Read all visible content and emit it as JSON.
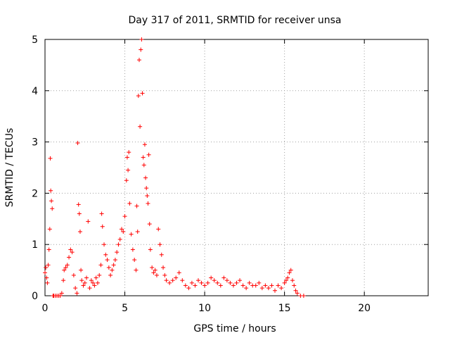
{
  "chart_data": {
    "type": "scatter",
    "title": "Day 317 of 2011, SRMTID for receiver unsa",
    "xlabel": "GPS time / hours",
    "ylabel": "SRMTID / TECUs",
    "xlim": [
      0,
      24
    ],
    "ylim": [
      0,
      5
    ],
    "x_ticks": [
      0,
      5,
      10,
      15,
      20
    ],
    "y_ticks": [
      0,
      1,
      2,
      3,
      4,
      5
    ],
    "grid": true,
    "marker": "+",
    "colors": {
      "series": "#ff0000",
      "grid": "#a0a0a0",
      "frame": "#000000"
    },
    "series": [
      {
        "name": "SRMTID",
        "x": [
          0.0,
          0.05,
          0.1,
          0.15,
          0.2,
          0.25,
          0.3,
          0.33,
          0.36,
          0.4,
          0.45,
          0.5,
          0.55,
          0.65,
          0.75,
          0.85,
          0.95,
          1.05,
          1.15,
          1.2,
          1.3,
          1.4,
          1.5,
          1.6,
          1.7,
          1.8,
          1.9,
          2.0,
          2.05,
          2.1,
          2.15,
          2.2,
          2.25,
          2.3,
          2.4,
          2.5,
          2.6,
          2.7,
          2.8,
          2.9,
          3.0,
          3.1,
          3.2,
          3.3,
          3.4,
          3.5,
          3.55,
          3.6,
          3.7,
          3.8,
          3.9,
          4.0,
          4.1,
          4.2,
          4.3,
          4.4,
          4.5,
          4.6,
          4.7,
          4.8,
          4.9,
          5.0,
          5.1,
          5.15,
          5.2,
          5.25,
          5.3,
          5.4,
          5.5,
          5.6,
          5.7,
          5.75,
          5.8,
          5.85,
          5.9,
          5.95,
          6.0,
          6.05,
          6.1,
          6.15,
          6.2,
          6.25,
          6.3,
          6.35,
          6.4,
          6.45,
          6.5,
          6.55,
          6.6,
          6.7,
          6.8,
          6.9,
          7.0,
          7.1,
          7.2,
          7.3,
          7.4,
          7.5,
          7.6,
          7.8,
          8.0,
          8.2,
          8.4,
          8.6,
          8.8,
          9.0,
          9.2,
          9.4,
          9.6,
          9.8,
          10.0,
          10.2,
          10.4,
          10.6,
          10.8,
          11.0,
          11.2,
          11.4,
          11.6,
          11.8,
          12.0,
          12.2,
          12.4,
          12.6,
          12.8,
          13.0,
          13.2,
          13.4,
          13.6,
          13.8,
          14.0,
          14.2,
          14.4,
          14.6,
          14.8,
          15.0,
          15.1,
          15.2,
          15.3,
          15.4,
          15.5,
          15.6,
          15.7,
          15.8,
          16.0,
          16.2
        ],
        "y": [
          0.45,
          0.55,
          0.35,
          0.25,
          0.6,
          0.9,
          1.3,
          2.68,
          2.05,
          1.85,
          1.7,
          0.0,
          0.0,
          0.0,
          0.0,
          0.0,
          0.0,
          0.05,
          0.3,
          0.5,
          0.55,
          0.6,
          0.75,
          0.9,
          0.85,
          0.4,
          0.15,
          0.05,
          2.98,
          1.78,
          1.6,
          1.25,
          0.5,
          0.3,
          0.2,
          0.25,
          0.35,
          1.45,
          0.15,
          0.3,
          0.25,
          0.2,
          0.35,
          0.25,
          0.4,
          0.6,
          1.6,
          1.35,
          1.0,
          0.8,
          0.7,
          0.55,
          0.4,
          0.5,
          0.6,
          0.7,
          0.85,
          1.0,
          1.1,
          1.3,
          1.25,
          1.55,
          2.25,
          2.7,
          2.45,
          2.8,
          1.8,
          1.2,
          0.9,
          0.7,
          0.5,
          1.75,
          1.25,
          3.9,
          4.6,
          3.3,
          4.8,
          5.0,
          3.95,
          2.7,
          2.55,
          2.95,
          2.3,
          2.1,
          1.95,
          1.8,
          2.75,
          1.4,
          0.9,
          0.55,
          0.45,
          0.5,
          0.4,
          1.3,
          1.0,
          0.8,
          0.55,
          0.4,
          0.3,
          0.25,
          0.3,
          0.35,
          0.45,
          0.3,
          0.2,
          0.15,
          0.25,
          0.2,
          0.3,
          0.25,
          0.2,
          0.25,
          0.35,
          0.3,
          0.25,
          0.2,
          0.35,
          0.3,
          0.25,
          0.2,
          0.25,
          0.3,
          0.2,
          0.15,
          0.25,
          0.2,
          0.2,
          0.25,
          0.15,
          0.2,
          0.15,
          0.2,
          0.1,
          0.2,
          0.15,
          0.25,
          0.3,
          0.35,
          0.45,
          0.5,
          0.3,
          0.2,
          0.1,
          0.05,
          0.0,
          0.0
        ]
      }
    ]
  }
}
